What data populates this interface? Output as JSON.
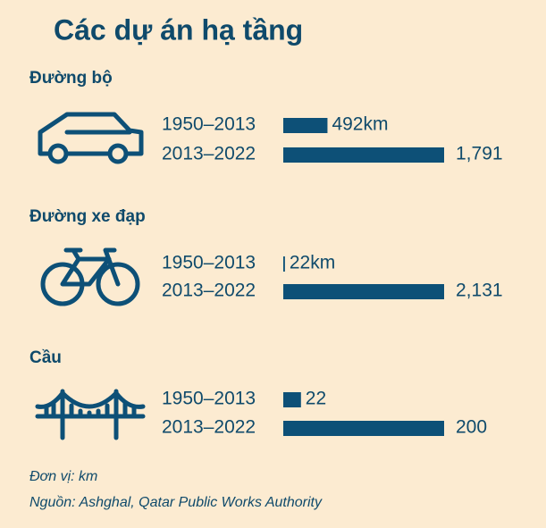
{
  "title": "Các dự án hạ tầng",
  "chart_data": [
    {
      "type": "bar",
      "orientation": "horizontal",
      "title": "Đường bộ",
      "categories": [
        "1950–2013",
        "2013–2022"
      ],
      "values": [
        492,
        1791
      ],
      "value_labels": [
        "492km",
        "1,791"
      ],
      "color": "#0d5077"
    },
    {
      "type": "bar",
      "orientation": "horizontal",
      "title": "Đường xe đạp",
      "categories": [
        "1950–2013",
        "2013–2022"
      ],
      "values": [
        22,
        2131
      ],
      "value_labels": [
        "22km",
        "2,131"
      ],
      "color": "#0d5077"
    },
    {
      "type": "bar",
      "orientation": "horizontal",
      "title": "Cầu",
      "categories": [
        "1950–2013",
        "2013–2022"
      ],
      "values": [
        22,
        200
      ],
      "value_labels": [
        "22",
        "200"
      ],
      "color": "#0d5077"
    }
  ],
  "unit_note": "Đơn vị: km",
  "source": "Nguồn: Ashghal, Qatar Public Works Authority"
}
